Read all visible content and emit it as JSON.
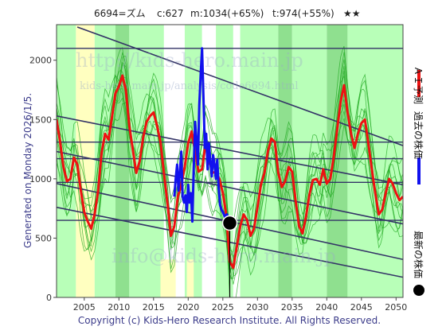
{
  "header": {
    "code_name": "6694=ズム",
    "c_text": "c:627",
    "m_text": "m:1034(+65%)",
    "t_text": "t:974(+55%)",
    "stars": "★★"
  },
  "side_label": "Generated on Monday 2026/1/5.",
  "legend": {
    "ai_forecast": "ＡＩ予測",
    "past_price": "過去の株価",
    "latest_price": "最新の株価"
  },
  "watermarks": {
    "main": "http://kids-hero.main.jp",
    "sub": "kids-hero.main.jp/analysis/code6694.html",
    "mail": "info@kids-hero.main.jp"
  },
  "footer": "Copyright (c) Kids-Hero Research Institute. All Rights Reserved.",
  "colors": {
    "ai_forecast": "#ee1111",
    "past_price": "#1111ee",
    "latest_marker": "#000000",
    "trend_lines": "#333366",
    "band_lines": "#22aa22",
    "light_green_zone": "#b8ffb8",
    "mid_green_zone": "#8fe08f",
    "white_zone": "#ffffff",
    "yellow_zone": "#ffffc0"
  },
  "chart_data": {
    "type": "line",
    "xlim": [
      2001,
      2051
    ],
    "ylim": [
      0,
      2300
    ],
    "x_ticks": [
      2005,
      2010,
      2015,
      2020,
      2025,
      2030,
      2035,
      2040,
      2045,
      2050
    ],
    "y_ticks": [
      0,
      500,
      1000,
      1500,
      2000
    ],
    "grid": false,
    "legend_placement": "right",
    "series": [
      {
        "name": "ＡＩ予測",
        "points": [
          [
            2001.0,
            1500
          ],
          [
            2001.5,
            1320
          ],
          [
            2002.0,
            1100
          ],
          [
            2002.5,
            980
          ],
          [
            2003.0,
            1000
          ],
          [
            2003.5,
            1180
          ],
          [
            2004.0,
            1120
          ],
          [
            2004.5,
            900
          ],
          [
            2005.0,
            720
          ],
          [
            2005.5,
            640
          ],
          [
            2006.0,
            580
          ],
          [
            2006.5,
            700
          ],
          [
            2007.0,
            900
          ],
          [
            2007.5,
            1220
          ],
          [
            2008.0,
            1380
          ],
          [
            2008.5,
            1330
          ],
          [
            2009.0,
            1520
          ],
          [
            2009.5,
            1720
          ],
          [
            2010.0,
            1780
          ],
          [
            2010.5,
            1870
          ],
          [
            2011.0,
            1750
          ],
          [
            2011.5,
            1450
          ],
          [
            2012.0,
            1250
          ],
          [
            2012.5,
            1050
          ],
          [
            2013.0,
            1150
          ],
          [
            2013.5,
            1350
          ],
          [
            2014.0,
            1480
          ],
          [
            2014.5,
            1530
          ],
          [
            2015.0,
            1560
          ],
          [
            2015.5,
            1450
          ],
          [
            2016.0,
            1310
          ],
          [
            2016.5,
            1050
          ],
          [
            2017.0,
            800
          ],
          [
            2017.5,
            520
          ],
          [
            2018.0,
            600
          ],
          [
            2018.5,
            850
          ],
          [
            2019.0,
            950
          ],
          [
            2019.5,
            1100
          ],
          [
            2020.0,
            1300
          ],
          [
            2020.5,
            1400
          ],
          [
            2021.0,
            1230
          ],
          [
            2021.5,
            1060
          ],
          [
            2022.0,
            1080
          ],
          [
            2022.5,
            1290
          ],
          [
            2023.0,
            1170
          ],
          [
            2023.5,
            1050
          ],
          [
            2024.0,
            1060
          ],
          [
            2024.5,
            1000
          ],
          [
            2025.0,
            880
          ],
          [
            2025.5,
            700
          ],
          [
            2026.0,
            300
          ],
          [
            2026.5,
            250
          ],
          [
            2027.0,
            420
          ],
          [
            2027.5,
            600
          ],
          [
            2028.0,
            700
          ],
          [
            2028.5,
            650
          ],
          [
            2029.0,
            520
          ],
          [
            2029.5,
            580
          ],
          [
            2030.0,
            760
          ],
          [
            2030.5,
            950
          ],
          [
            2031.0,
            1050
          ],
          [
            2031.5,
            1230
          ],
          [
            2032.0,
            1340
          ],
          [
            2032.5,
            1310
          ],
          [
            2033.0,
            1050
          ],
          [
            2033.5,
            930
          ],
          [
            2034.0,
            980
          ],
          [
            2034.5,
            1100
          ],
          [
            2035.0,
            1060
          ],
          [
            2035.5,
            820
          ],
          [
            2036.0,
            600
          ],
          [
            2036.5,
            540
          ],
          [
            2037.0,
            680
          ],
          [
            2037.5,
            870
          ],
          [
            2038.0,
            990
          ],
          [
            2038.5,
            1000
          ],
          [
            2039.0,
            950
          ],
          [
            2039.5,
            1080
          ],
          [
            2040.0,
            960
          ],
          [
            2040.5,
            1000
          ],
          [
            2041.0,
            1180
          ],
          [
            2041.5,
            1420
          ],
          [
            2042.0,
            1650
          ],
          [
            2042.5,
            1790
          ],
          [
            2043.0,
            1560
          ],
          [
            2043.5,
            1380
          ],
          [
            2044.0,
            1260
          ],
          [
            2044.5,
            1380
          ],
          [
            2045.0,
            1470
          ],
          [
            2045.5,
            1500
          ],
          [
            2046.0,
            1300
          ],
          [
            2046.5,
            1080
          ],
          [
            2047.0,
            880
          ],
          [
            2047.5,
            700
          ],
          [
            2048.0,
            740
          ],
          [
            2048.5,
            880
          ],
          [
            2049.0,
            1000
          ],
          [
            2049.5,
            960
          ],
          [
            2050.0,
            880
          ],
          [
            2050.5,
            820
          ],
          [
            2051.0,
            850
          ]
        ]
      },
      {
        "name": "過去の株価",
        "points": [
          [
            2018.0,
            850
          ],
          [
            2018.2,
            1000
          ],
          [
            2018.4,
            1120
          ],
          [
            2018.6,
            900
          ],
          [
            2018.8,
            1060
          ],
          [
            2019.0,
            1230
          ],
          [
            2019.2,
            850
          ],
          [
            2019.4,
            800
          ],
          [
            2019.6,
            860
          ],
          [
            2019.8,
            720
          ],
          [
            2020.0,
            950
          ],
          [
            2020.2,
            800
          ],
          [
            2020.4,
            880
          ],
          [
            2020.6,
            640
          ],
          [
            2020.8,
            1100
          ],
          [
            2021.0,
            1480
          ],
          [
            2021.2,
            1320
          ],
          [
            2021.4,
            1120
          ],
          [
            2021.6,
            1620
          ],
          [
            2021.8,
            1880
          ],
          [
            2022.0,
            2100
          ],
          [
            2022.2,
            1700
          ],
          [
            2022.4,
            1260
          ],
          [
            2022.6,
            1380
          ],
          [
            2022.8,
            1080
          ],
          [
            2023.0,
            1300
          ],
          [
            2023.2,
            1150
          ],
          [
            2023.4,
            1020
          ],
          [
            2023.6,
            1200
          ],
          [
            2023.8,
            1120
          ],
          [
            2024.0,
            1000
          ],
          [
            2024.2,
            1160
          ],
          [
            2024.4,
            920
          ],
          [
            2024.6,
            780
          ],
          [
            2024.8,
            740
          ],
          [
            2025.0,
            720
          ],
          [
            2025.3,
            680
          ],
          [
            2025.6,
            700
          ],
          [
            2025.9,
            640
          ],
          [
            2026.0,
            627
          ]
        ]
      }
    ],
    "latest_point": {
      "x": 2026.0,
      "y": 627
    },
    "trend_lines": [
      {
        "x0": 2004.0,
        "y0": 2280,
        "x1": 2051.0,
        "y1": 1280
      },
      {
        "x0": 2001.0,
        "y0": 1530,
        "x1": 2051.0,
        "y1": 950
      },
      {
        "x0": 2001.0,
        "y0": 1230,
        "x1": 2051.0,
        "y1": 620
      },
      {
        "x0": 2001.0,
        "y0": 960,
        "x1": 2051.0,
        "y1": 320
      },
      {
        "x0": 2001.0,
        "y0": 760,
        "x1": 2051.0,
        "y1": 170
      }
    ],
    "horizontal_lines": [
      2100,
      1310,
      1170,
      970,
      650
    ],
    "zones": [
      {
        "from": 2001.0,
        "to": 2003.8,
        "kind": "light_green"
      },
      {
        "from": 2003.8,
        "to": 2006.5,
        "kind": "yellow"
      },
      {
        "from": 2006.5,
        "to": 2009.5,
        "kind": "light_green"
      },
      {
        "from": 2009.5,
        "to": 2011.5,
        "kind": "mid_green"
      },
      {
        "from": 2011.5,
        "to": 2016.5,
        "kind": "light_green"
      },
      {
        "from": 2016.5,
        "to": 2019.5,
        "kind": "white"
      },
      {
        "from": 2019.5,
        "to": 2022.0,
        "kind": "light_green"
      },
      {
        "from": 2022.0,
        "to": 2024.0,
        "kind": "white"
      },
      {
        "from": 2024.0,
        "to": 2026.5,
        "kind": "light_green"
      },
      {
        "from": 2026.5,
        "to": 2027.5,
        "kind": "white"
      },
      {
        "from": 2027.5,
        "to": 2033.0,
        "kind": "light_green"
      },
      {
        "from": 2033.0,
        "to": 2035.0,
        "kind": "mid_green"
      },
      {
        "from": 2035.0,
        "to": 2040.0,
        "kind": "light_green"
      },
      {
        "from": 2040.0,
        "to": 2043.0,
        "kind": "mid_green"
      },
      {
        "from": 2043.0,
        "to": 2051.0,
        "kind": "light_green"
      }
    ],
    "band_curves": [
      {
        "offset": 0,
        "amp": 380,
        "period": 7.5
      },
      {
        "offset": 1.2,
        "amp": 280,
        "period": 5.0
      },
      {
        "offset": 2.5,
        "amp": 220,
        "period": 9.0
      },
      {
        "offset": 0.6,
        "amp": 160,
        "period": 3.5
      },
      {
        "offset": 3.1,
        "amp": 330,
        "period": 11.0
      },
      {
        "offset": 1.9,
        "amp": 120,
        "period": 2.5
      }
    ]
  }
}
